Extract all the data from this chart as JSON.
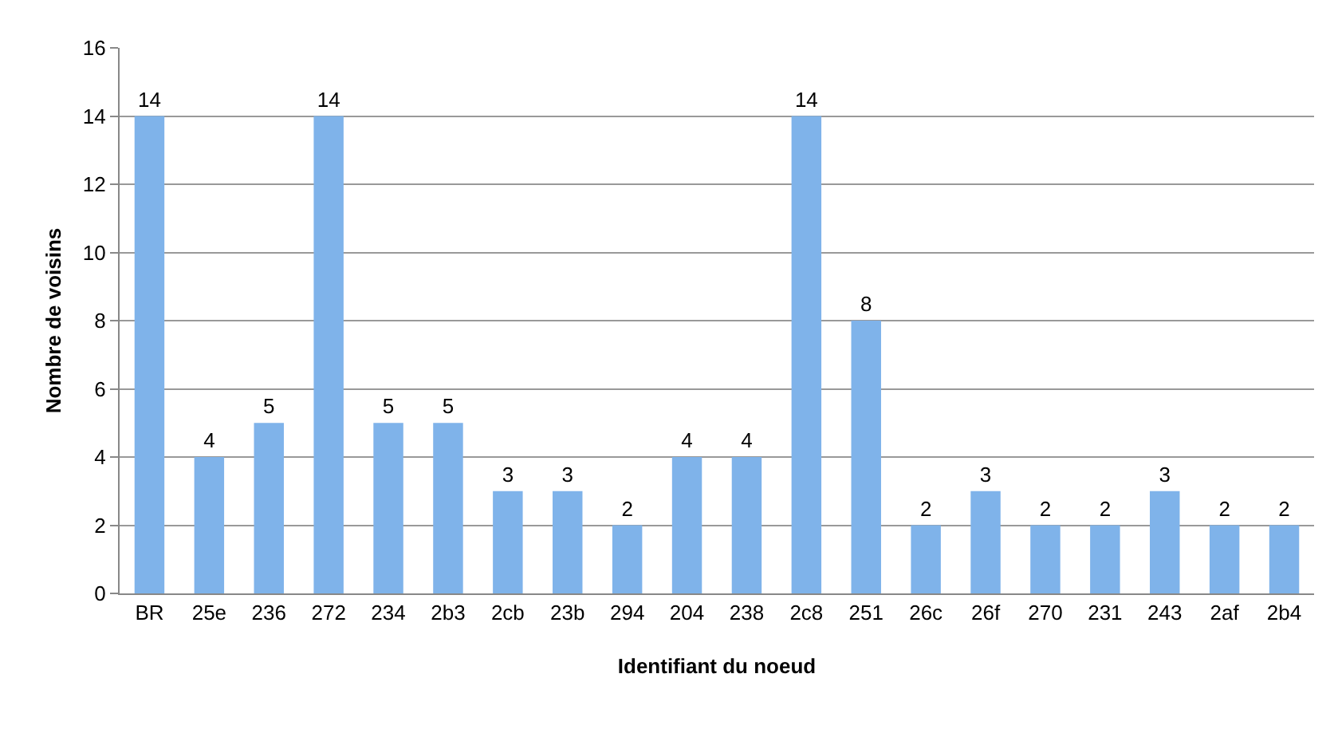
{
  "chart_data": {
    "type": "bar",
    "xlabel": "Identifiant du noeud",
    "ylabel": "Nombre de voisins",
    "categories": [
      "BR",
      "25e",
      "236",
      "272",
      "234",
      "2b3",
      "2cb",
      "23b",
      "294",
      "204",
      "238",
      "2c8",
      "251",
      "26c",
      "26f",
      "270",
      "231",
      "243",
      "2af",
      "2b4"
    ],
    "values": [
      14,
      4,
      5,
      14,
      5,
      5,
      3,
      3,
      2,
      4,
      4,
      14,
      8,
      2,
      3,
      2,
      2,
      3,
      2,
      2
    ],
    "color": "#7fb3ea",
    "ylim": [
      0,
      16
    ],
    "yticks": [
      0,
      2,
      4,
      6,
      8,
      10,
      12,
      14,
      16
    ],
    "grid": "y",
    "data_labels": true,
    "legend": false
  }
}
